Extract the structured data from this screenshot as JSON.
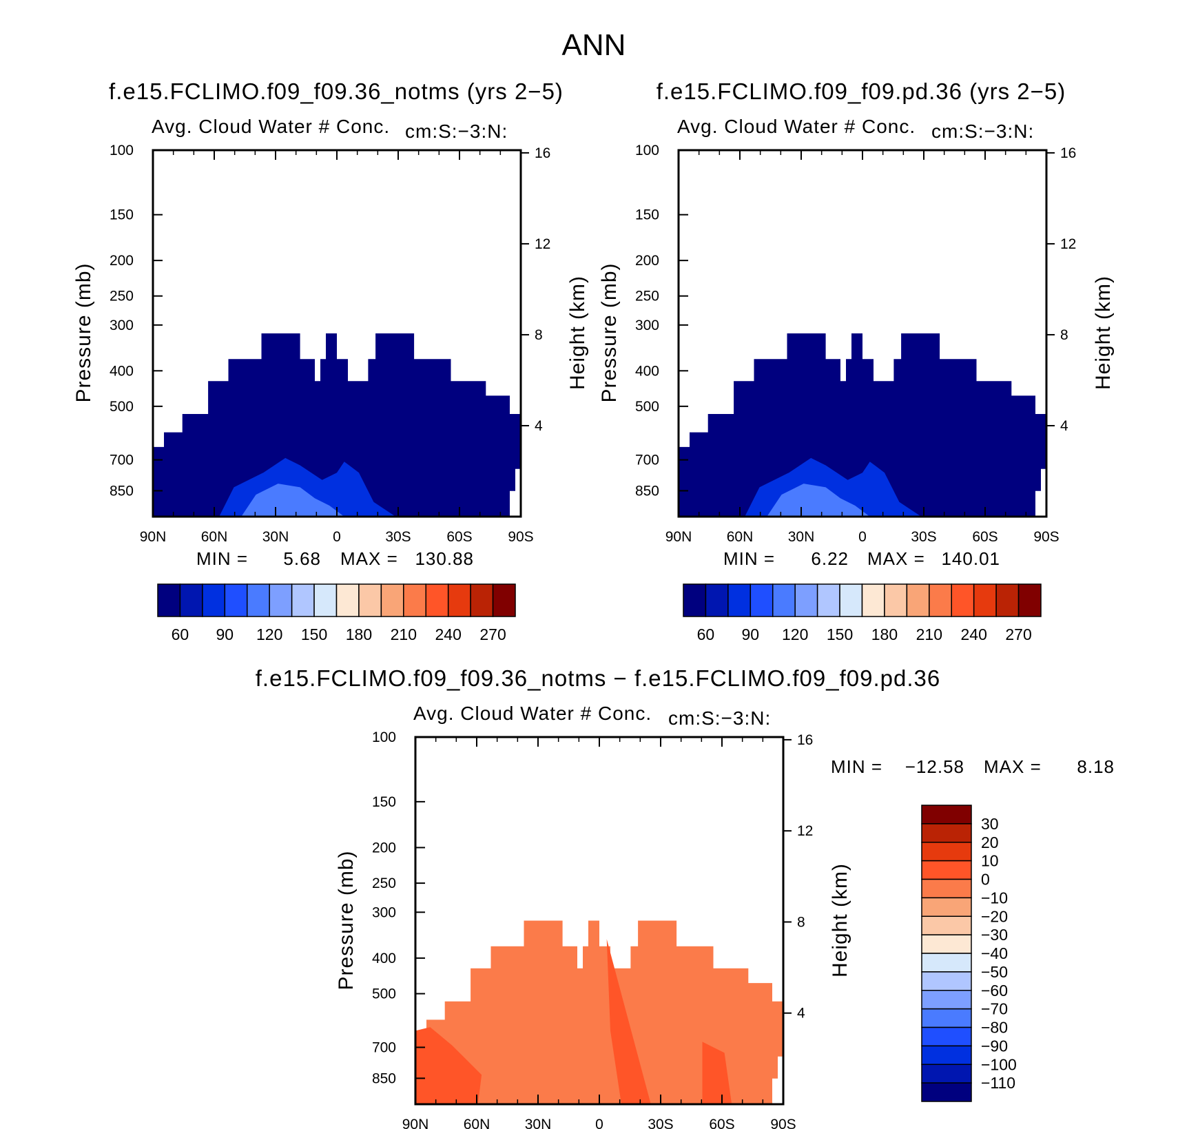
{
  "figure_title": "ANN",
  "colors": {
    "cbar_abs": [
      "#00007f",
      "#0016b0",
      "#0030e0",
      "#1f4fff",
      "#4a7bff",
      "#7d9fff",
      "#b0c6ff",
      "#d6e8fb",
      "#fde8d4",
      "#fbc8a7",
      "#f9a577",
      "#fb7b4a",
      "#ff5528",
      "#e63a0e",
      "#ba2305",
      "#800000"
    ],
    "cbar_diff": [
      "#00007f",
      "#0016b0",
      "#0030e0",
      "#1f4fff",
      "#4a7bff",
      "#7d9fff",
      "#b0c6ff",
      "#d6e8fb",
      "#fde8d4",
      "#fbc8a7",
      "#f9a577",
      "#fb7b4a",
      "#ff5528",
      "#e63a0e",
      "#ba2305",
      "#800000"
    ],
    "field_abs": "#00007f",
    "field_diff": "#fb7b4a",
    "field_diff_deep": "#ff5528",
    "field_abs_mid": "#0030e0",
    "field_abs_light": "#4a7bff"
  },
  "chart_data": [
    {
      "type": "heatmap",
      "title": "f.e15.FCLIMO.f09_f09.36_notms (yrs 2−5)",
      "subtitle": "Avg. Cloud Water # Conc.",
      "units": "cm:S:−3:N:",
      "xlabel": "",
      "ylabel": "Pressure (mb)",
      "y2label": "Height (km)",
      "x_ticks": [
        "90N",
        "60N",
        "30N",
        "0",
        "30S",
        "60S",
        "90S"
      ],
      "y_ticks": [
        100,
        150,
        200,
        250,
        300,
        400,
        500,
        700,
        850
      ],
      "y2_ticks": [
        16,
        12,
        8,
        4
      ],
      "y_scale": "log",
      "ylim": [
        100,
        1000
      ],
      "min": 5.68,
      "max": 130.88,
      "min_label": "MIN =",
      "min_value": "5.68",
      "max_label": "MAX =",
      "max_value": "130.88",
      "cbar_labels": [
        "60",
        "90",
        "120",
        "150",
        "180",
        "210",
        "240",
        "270"
      ],
      "cbar_orientation": "horizontal"
    },
    {
      "type": "heatmap",
      "title": "f.e15.FCLIMO.f09_f09.pd.36 (yrs 2−5)",
      "subtitle": "Avg. Cloud Water # Conc.",
      "units": "cm:S:−3:N:",
      "xlabel": "",
      "ylabel": "Pressure (mb)",
      "y2label": "Height (km)",
      "x_ticks": [
        "90N",
        "60N",
        "30N",
        "0",
        "30S",
        "60S",
        "90S"
      ],
      "y_ticks": [
        100,
        150,
        200,
        250,
        300,
        400,
        500,
        700,
        850
      ],
      "y2_ticks": [
        16,
        12,
        8,
        4
      ],
      "y_scale": "log",
      "ylim": [
        100,
        1000
      ],
      "min": 6.22,
      "max": 140.01,
      "min_label": "MIN =",
      "min_value": "6.22",
      "max_label": "MAX =",
      "max_value": "140.01",
      "cbar_labels": [
        "60",
        "90",
        "120",
        "150",
        "180",
        "210",
        "240",
        "270"
      ],
      "cbar_orientation": "horizontal"
    },
    {
      "type": "heatmap",
      "title": "f.e15.FCLIMO.f09_f09.36_notms − f.e15.FCLIMO.f09_f09.pd.36",
      "subtitle": "Avg. Cloud Water # Conc.",
      "units": "cm:S:−3:N:",
      "xlabel": "",
      "ylabel": "Pressure (mb)",
      "y2label": "Height (km)",
      "x_ticks": [
        "90N",
        "60N",
        "30N",
        "0",
        "30S",
        "60S",
        "90S"
      ],
      "y_ticks": [
        100,
        150,
        200,
        250,
        300,
        400,
        500,
        700,
        850
      ],
      "y2_ticks": [
        16,
        12,
        8,
        4
      ],
      "y_scale": "log",
      "ylim": [
        100,
        1000
      ],
      "min": -12.58,
      "max": 8.18,
      "min_label": "MIN =",
      "min_value": "−12.58",
      "max_label": "MAX =",
      "max_value": "8.18",
      "cbar_labels": [
        "30",
        "20",
        "10",
        "0",
        "−10",
        "−20",
        "−30",
        "−40",
        "−50",
        "−60",
        "−70",
        "−80",
        "−90",
        "−100",
        "−110"
      ],
      "cbar_orientation": "vertical"
    }
  ]
}
